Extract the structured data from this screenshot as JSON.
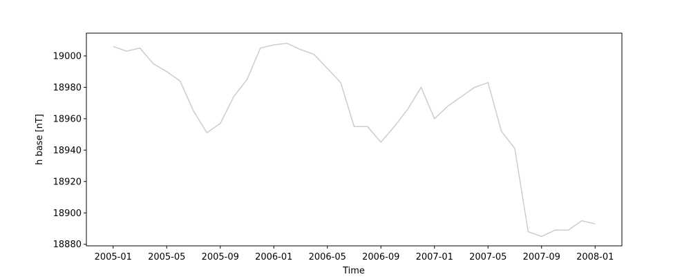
{
  "chart_data": {
    "type": "line",
    "xlabel": "Time",
    "ylabel": "h base [nT]",
    "x": [
      "2005-01",
      "2005-02",
      "2005-03",
      "2005-04",
      "2005-05",
      "2005-06",
      "2005-07",
      "2005-08",
      "2005-09",
      "2005-10",
      "2005-11",
      "2005-12",
      "2006-01",
      "2006-02",
      "2006-03",
      "2006-04",
      "2006-05",
      "2006-06",
      "2006-07",
      "2006-08",
      "2006-09",
      "2006-10",
      "2006-11",
      "2006-12",
      "2007-01",
      "2007-02",
      "2007-03",
      "2007-04",
      "2007-05",
      "2007-06",
      "2007-07",
      "2007-08",
      "2007-09",
      "2007-10",
      "2007-11",
      "2007-12",
      "2008-01"
    ],
    "series": [
      {
        "color": "#cccccc",
        "values": [
          19006,
          19003,
          19005,
          18995,
          18990,
          18984,
          18965,
          18951,
          18957,
          18974,
          18985,
          19005,
          19007,
          19008,
          19004,
          19001,
          18992,
          18983,
          18955,
          18955,
          18945,
          18955,
          18966,
          18980,
          18960,
          18968,
          18974,
          18980,
          18983,
          18952,
          18941,
          18888,
          18885,
          18889,
          18889,
          18895,
          18893
        ]
      }
    ],
    "xlim": [
      "2004-11",
      "2008-03"
    ],
    "xticks": [
      "2005-01",
      "2005-05",
      "2005-09",
      "2006-01",
      "2006-05",
      "2006-09",
      "2007-01",
      "2007-05",
      "2007-09",
      "2008-01"
    ],
    "ylim": [
      18879,
      19014.5
    ],
    "yticks": [
      18880,
      18900,
      18920,
      18940,
      18960,
      18980,
      19000
    ]
  }
}
